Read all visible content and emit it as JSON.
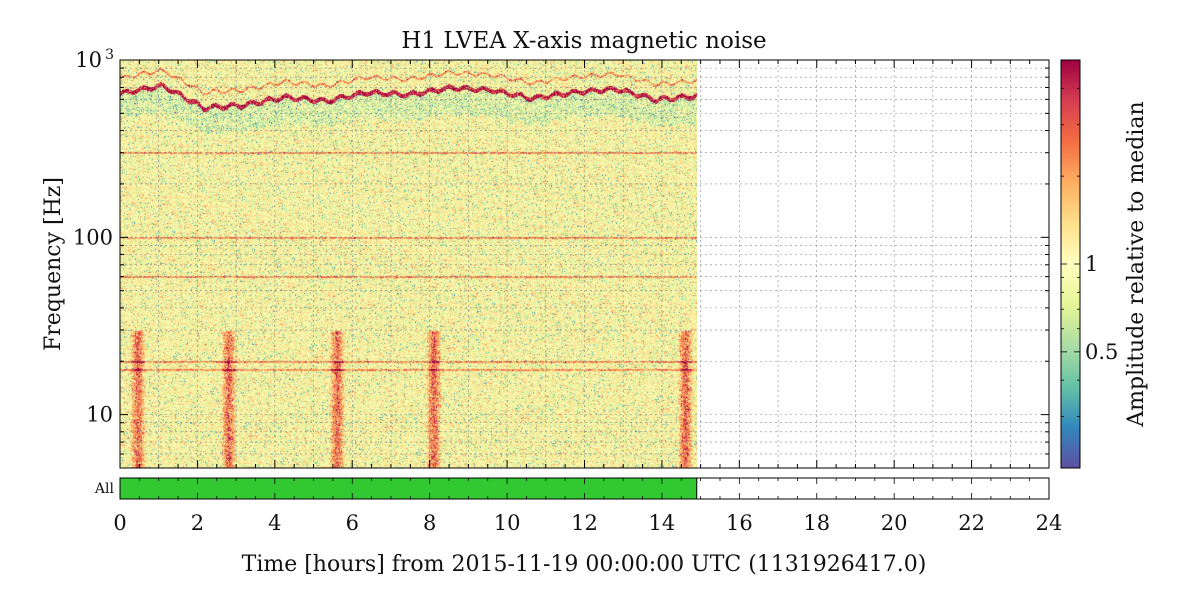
{
  "chart_data": {
    "type": "heatmap",
    "title": "H1 LVEA X-axis magnetic noise",
    "xlabel": "Time [hours] from 2015-11-19 00:00:00 UTC (1131926417.0)",
    "ylabel": "Frequency [Hz]",
    "xlim": [
      0,
      24
    ],
    "x_ticks": [
      "0",
      "2",
      "4",
      "6",
      "8",
      "10",
      "12",
      "14",
      "16",
      "18",
      "20",
      "22",
      "24"
    ],
    "ylim": [
      5,
      1000
    ],
    "y_scale": "log",
    "y_ticks": [
      {
        "value": 10,
        "label": "10"
      },
      {
        "value": 100,
        "label": "100"
      },
      {
        "value": 1000,
        "label": "10",
        "sup": "3"
      }
    ],
    "data_end_hours": 14.9,
    "colorbar": {
      "label": "Amplitude relative to median",
      "colormap": "Spectral_r",
      "scale": "log",
      "range": [
        0.2,
        5
      ],
      "ticks": [
        {
          "value": 0.5,
          "label": "0.5"
        },
        {
          "value": 1,
          "label": "1"
        }
      ]
    },
    "features": {
      "high_frequency_line_hz": [
        650,
        720,
        540,
        560,
        620,
        590,
        660,
        640,
        700,
        680,
        610,
        660,
        690,
        600,
        630
      ],
      "persistent_lines_hz": [
        300,
        100,
        60,
        20,
        18
      ],
      "broadband_bursts_hours": [
        0.45,
        2.8,
        5.6,
        8.1,
        14.6
      ]
    },
    "segment_bar": {
      "label": "All",
      "active_span_hours": [
        0,
        14.9
      ],
      "active_color": "#32c832"
    },
    "grid": true
  }
}
